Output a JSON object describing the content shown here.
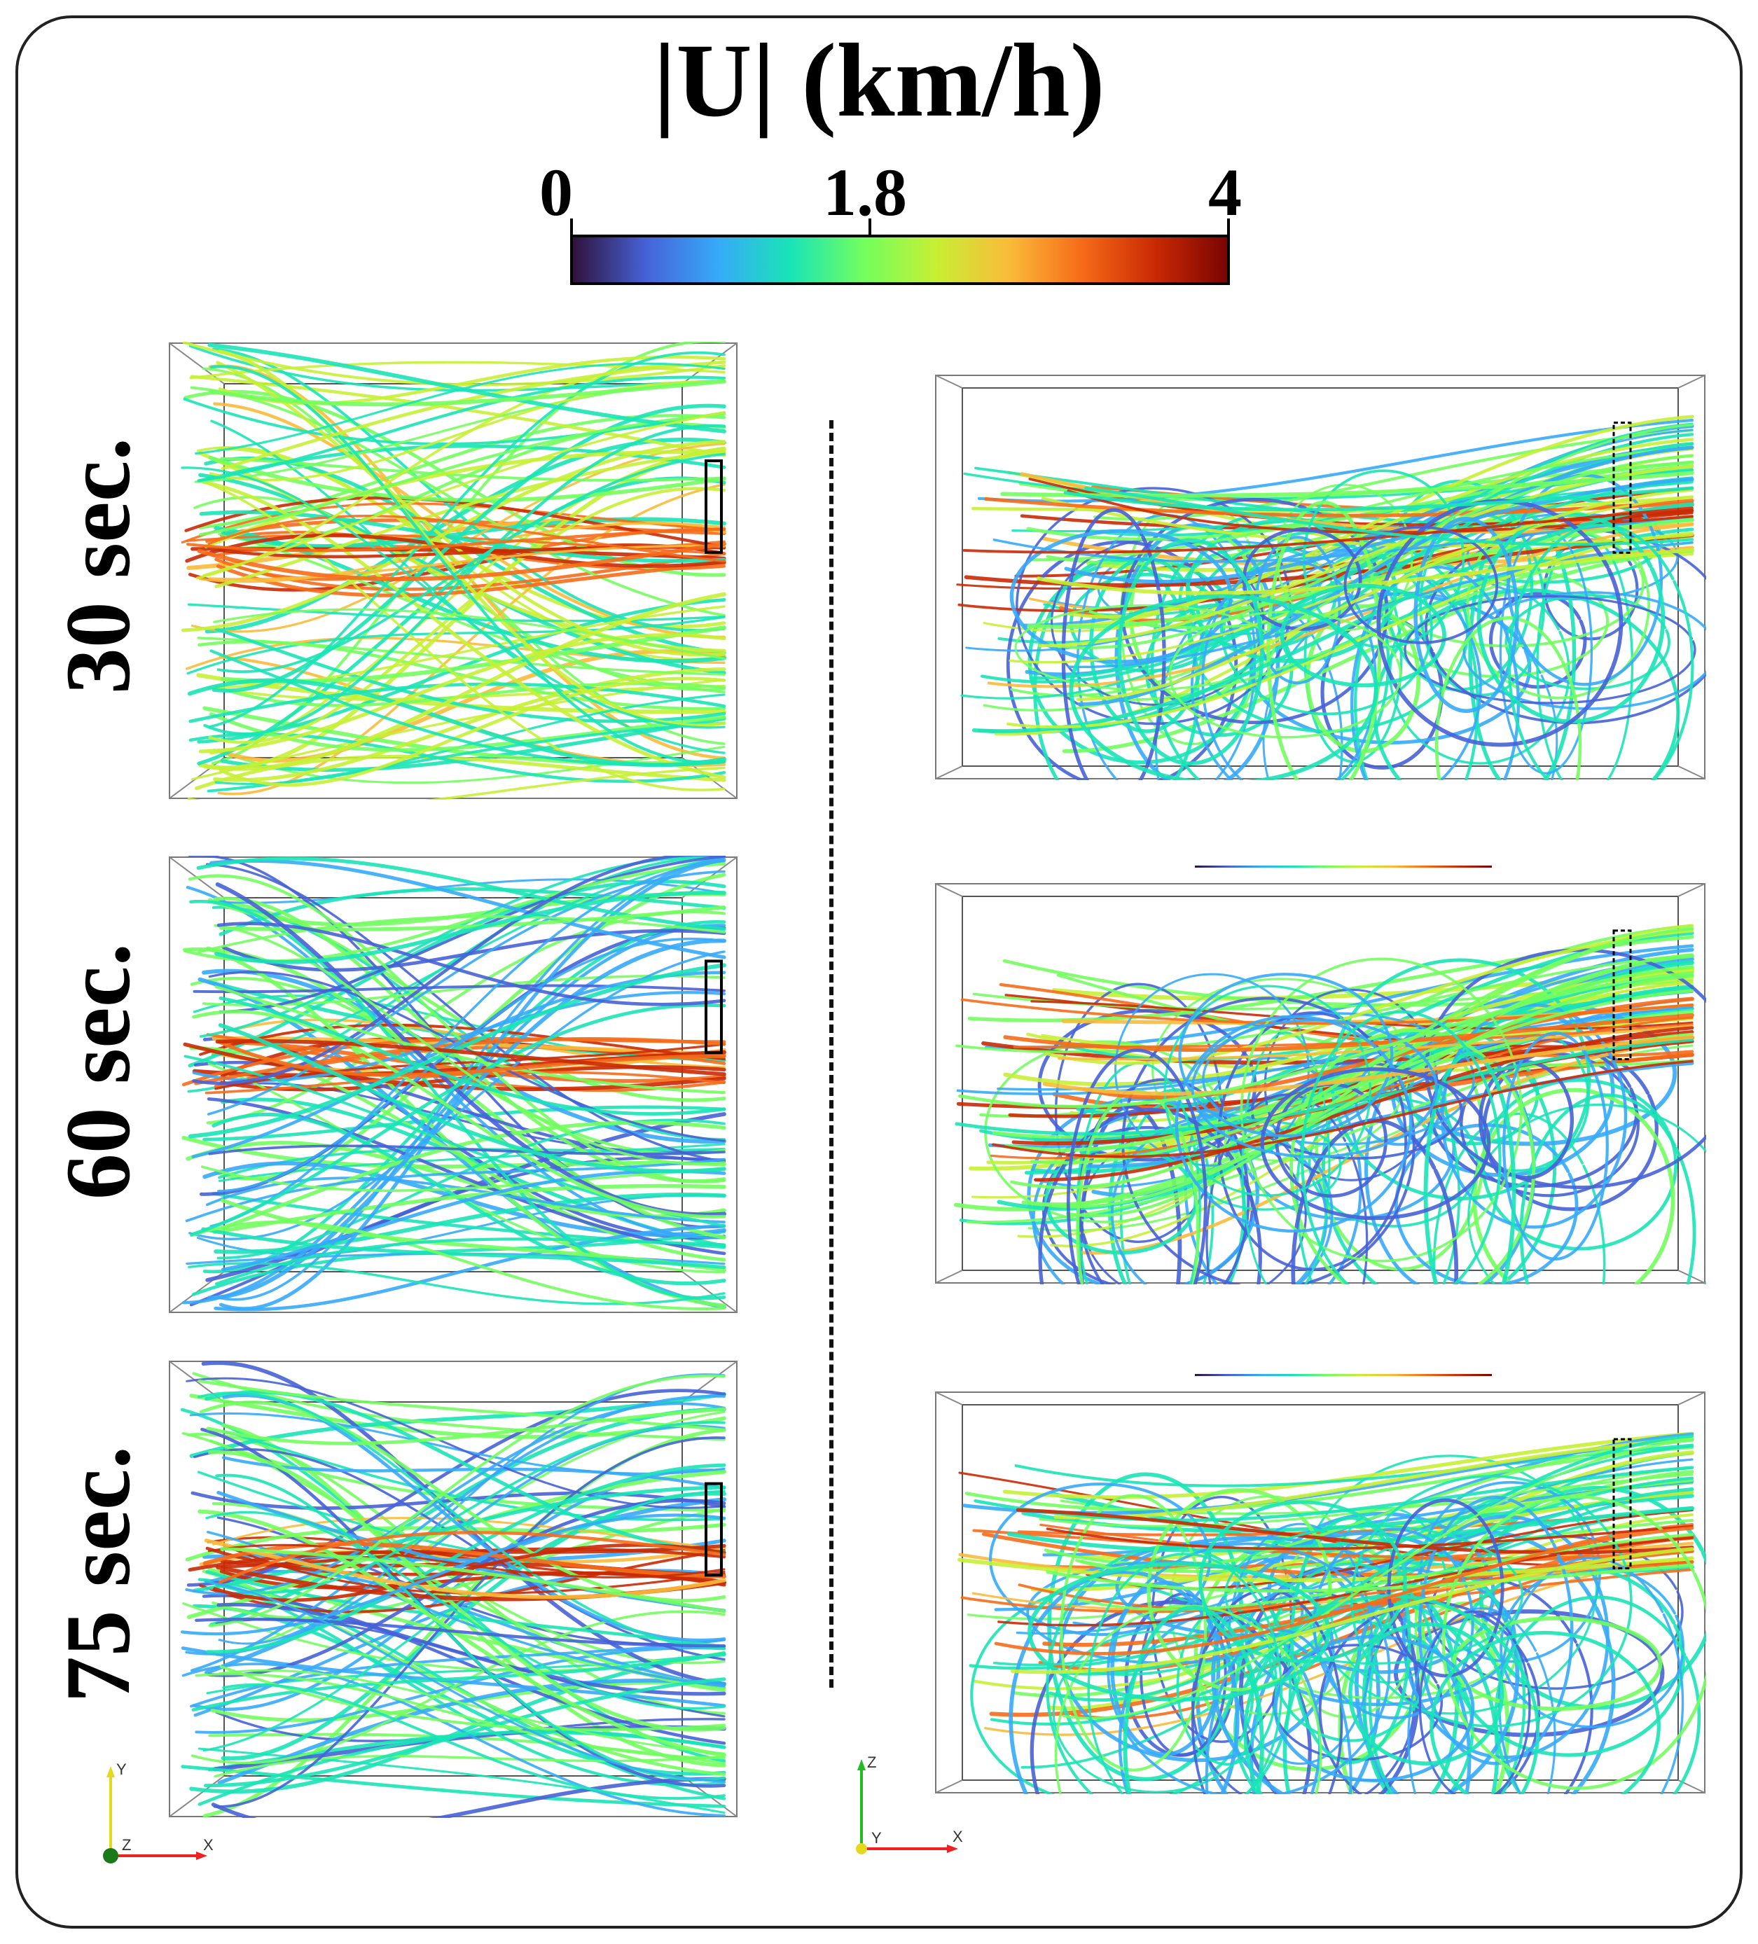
{
  "title": "|U| (km/h)",
  "colorbar": {
    "min_label": "0",
    "mid_label": "1.8",
    "max_label": "4",
    "min": 0,
    "mid": 1.8,
    "max": 4,
    "colors": [
      "#30123b",
      "#4662d7",
      "#36aaf9",
      "#1ae4b6",
      "#72fe5e",
      "#c7ef34",
      "#fabb39",
      "#f66b19",
      "#ca2a04",
      "#7a0403"
    ]
  },
  "time_labels": [
    "30 sec.",
    "60 sec.",
    "75 sec."
  ],
  "axes_left": {
    "vertical": "Y",
    "depth": "Z",
    "horizontal": "X"
  },
  "axes_right": {
    "vertical": "Z",
    "depth": "Y",
    "horizontal": "X"
  }
}
